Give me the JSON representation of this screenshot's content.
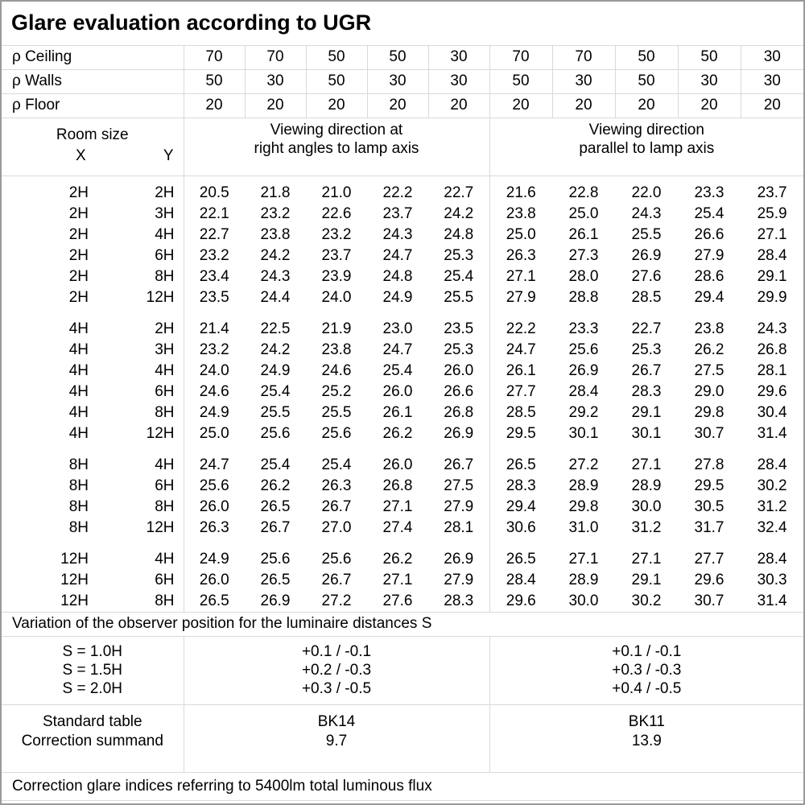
{
  "title": "Glare evaluation according to UGR",
  "colors": {
    "grid_line": "#d9d9d9",
    "outer_border": "#9a9a9a",
    "text": "#000000",
    "background": "#ffffff"
  },
  "header": {
    "rho_ceiling_label": "ρ Ceiling",
    "rho_ceiling_values": [
      "70",
      "70",
      "50",
      "50",
      "30",
      "70",
      "70",
      "50",
      "50",
      "30"
    ],
    "rho_walls_label": "ρ Walls",
    "rho_walls_values": [
      "50",
      "30",
      "50",
      "30",
      "30",
      "50",
      "30",
      "50",
      "30",
      "30"
    ],
    "rho_floor_label": "ρ Floor",
    "rho_floor_values": [
      "20",
      "20",
      "20",
      "20",
      "20",
      "20",
      "20",
      "20",
      "20",
      "20"
    ],
    "room_size_label": "Room size",
    "x_label": "X",
    "y_label": "Y",
    "group_right_angles_line1": "Viewing direction at",
    "group_right_angles_line2": "right angles to lamp axis",
    "group_parallel_line1": "Viewing direction",
    "group_parallel_line2": "parallel to lamp axis"
  },
  "ugr_table": {
    "blocks": [
      {
        "rows": [
          {
            "x": "2H",
            "y": "2H",
            "values": [
              "20.5",
              "21.8",
              "21.0",
              "22.2",
              "22.7",
              "21.6",
              "22.8",
              "22.0",
              "23.3",
              "23.7"
            ]
          },
          {
            "x": "2H",
            "y": "3H",
            "values": [
              "22.1",
              "23.2",
              "22.6",
              "23.7",
              "24.2",
              "23.8",
              "25.0",
              "24.3",
              "25.4",
              "25.9"
            ]
          },
          {
            "x": "2H",
            "y": "4H",
            "values": [
              "22.7",
              "23.8",
              "23.2",
              "24.3",
              "24.8",
              "25.0",
              "26.1",
              "25.5",
              "26.6",
              "27.1"
            ]
          },
          {
            "x": "2H",
            "y": "6H",
            "values": [
              "23.2",
              "24.2",
              "23.7",
              "24.7",
              "25.3",
              "26.3",
              "27.3",
              "26.9",
              "27.9",
              "28.4"
            ]
          },
          {
            "x": "2H",
            "y": "8H",
            "values": [
              "23.4",
              "24.3",
              "23.9",
              "24.8",
              "25.4",
              "27.1",
              "28.0",
              "27.6",
              "28.6",
              "29.1"
            ]
          },
          {
            "x": "2H",
            "y": "12H",
            "values": [
              "23.5",
              "24.4",
              "24.0",
              "24.9",
              "25.5",
              "27.9",
              "28.8",
              "28.5",
              "29.4",
              "29.9"
            ]
          }
        ]
      },
      {
        "rows": [
          {
            "x": "4H",
            "y": "2H",
            "values": [
              "21.4",
              "22.5",
              "21.9",
              "23.0",
              "23.5",
              "22.2",
              "23.3",
              "22.7",
              "23.8",
              "24.3"
            ]
          },
          {
            "x": "4H",
            "y": "3H",
            "values": [
              "23.2",
              "24.2",
              "23.8",
              "24.7",
              "25.3",
              "24.7",
              "25.6",
              "25.3",
              "26.2",
              "26.8"
            ]
          },
          {
            "x": "4H",
            "y": "4H",
            "values": [
              "24.0",
              "24.9",
              "24.6",
              "25.4",
              "26.0",
              "26.1",
              "26.9",
              "26.7",
              "27.5",
              "28.1"
            ]
          },
          {
            "x": "4H",
            "y": "6H",
            "values": [
              "24.6",
              "25.4",
              "25.2",
              "26.0",
              "26.6",
              "27.7",
              "28.4",
              "28.3",
              "29.0",
              "29.6"
            ]
          },
          {
            "x": "4H",
            "y": "8H",
            "values": [
              "24.9",
              "25.5",
              "25.5",
              "26.1",
              "26.8",
              "28.5",
              "29.2",
              "29.1",
              "29.8",
              "30.4"
            ]
          },
          {
            "x": "4H",
            "y": "12H",
            "values": [
              "25.0",
              "25.6",
              "25.6",
              "26.2",
              "26.9",
              "29.5",
              "30.1",
              "30.1",
              "30.7",
              "31.4"
            ]
          }
        ]
      },
      {
        "rows": [
          {
            "x": "8H",
            "y": "4H",
            "values": [
              "24.7",
              "25.4",
              "25.4",
              "26.0",
              "26.7",
              "26.5",
              "27.2",
              "27.1",
              "27.8",
              "28.4"
            ]
          },
          {
            "x": "8H",
            "y": "6H",
            "values": [
              "25.6",
              "26.2",
              "26.3",
              "26.8",
              "27.5",
              "28.3",
              "28.9",
              "28.9",
              "29.5",
              "30.2"
            ]
          },
          {
            "x": "8H",
            "y": "8H",
            "values": [
              "26.0",
              "26.5",
              "26.7",
              "27.1",
              "27.9",
              "29.4",
              "29.8",
              "30.0",
              "30.5",
              "31.2"
            ]
          },
          {
            "x": "8H",
            "y": "12H",
            "values": [
              "26.3",
              "26.7",
              "27.0",
              "27.4",
              "28.1",
              "30.6",
              "31.0",
              "31.2",
              "31.7",
              "32.4"
            ]
          }
        ]
      },
      {
        "rows": [
          {
            "x": "12H",
            "y": "4H",
            "values": [
              "24.9",
              "25.6",
              "25.6",
              "26.2",
              "26.9",
              "26.5",
              "27.1",
              "27.1",
              "27.7",
              "28.4"
            ]
          },
          {
            "x": "12H",
            "y": "6H",
            "values": [
              "26.0",
              "26.5",
              "26.7",
              "27.1",
              "27.9",
              "28.4",
              "28.9",
              "29.1",
              "29.6",
              "30.3"
            ]
          },
          {
            "x": "12H",
            "y": "8H",
            "values": [
              "26.5",
              "26.9",
              "27.2",
              "27.6",
              "28.3",
              "29.6",
              "30.0",
              "30.2",
              "30.7",
              "31.4"
            ]
          }
        ]
      }
    ]
  },
  "variation": {
    "note": "Variation of the observer position for the luminaire distances S",
    "rows": [
      {
        "label": "S = 1.0H",
        "right_angles": "+0.1 / -0.1",
        "parallel": "+0.1 / -0.1"
      },
      {
        "label": "S = 1.5H",
        "right_angles": "+0.2 / -0.3",
        "parallel": "+0.3 / -0.3"
      },
      {
        "label": "S = 2.0H",
        "right_angles": "+0.3 / -0.5",
        "parallel": "+0.4 / -0.5"
      }
    ]
  },
  "summary": {
    "standard_table_label": "Standard table",
    "correction_summand_label": "Correction summand",
    "right_angles": {
      "standard_table": "BK14",
      "correction_summand": "9.7"
    },
    "parallel": {
      "standard_table": "BK11",
      "correction_summand": "13.9"
    }
  },
  "footer_note": "Correction glare indices referring to 5400lm total luminous flux"
}
